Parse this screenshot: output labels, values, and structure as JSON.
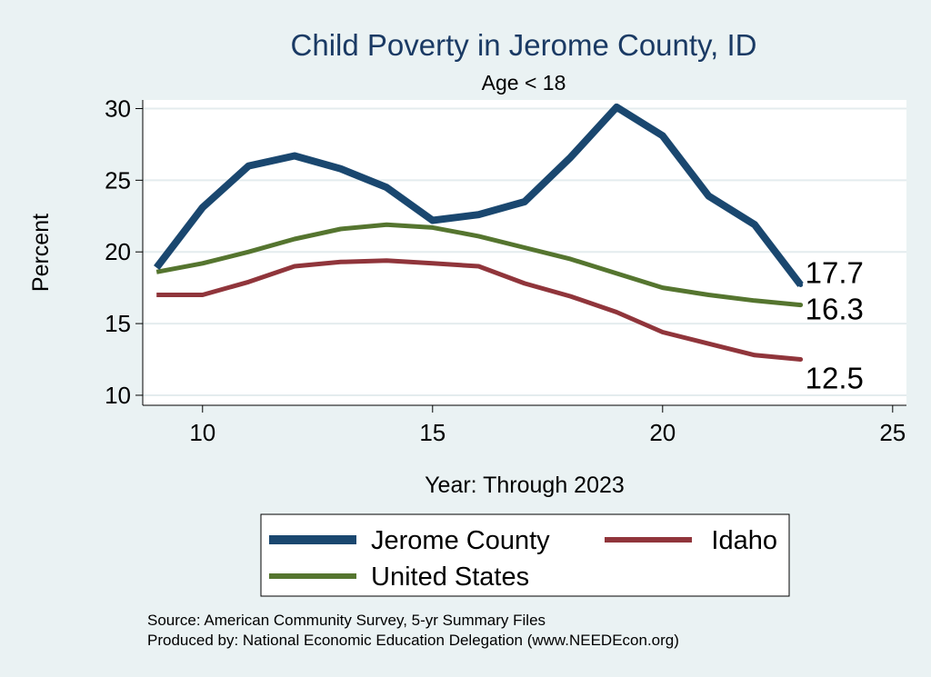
{
  "chart_data": {
    "type": "line",
    "title": "Child Poverty in Jerome County, ID",
    "subtitle": "Age < 18",
    "xlabel": "Year: Through 2023",
    "ylabel": "Percent",
    "xlim": [
      8.7,
      25.3
    ],
    "ylim": [
      9.3,
      30.6
    ],
    "xticks": [
      10,
      15,
      20,
      25
    ],
    "yticks": [
      10,
      15,
      20,
      25,
      30
    ],
    "x": [
      9,
      10,
      11,
      12,
      13,
      14,
      15,
      16,
      17,
      18,
      19,
      20,
      21,
      22,
      23
    ],
    "grid": true,
    "series": [
      {
        "name": "Jerome County",
        "color": "#1a476f",
        "values": [
          18.9,
          23.1,
          26.0,
          26.7,
          25.8,
          24.5,
          22.2,
          22.6,
          23.5,
          26.6,
          30.1,
          28.1,
          23.9,
          21.9,
          17.7
        ],
        "end_label": "17.7"
      },
      {
        "name": "United States",
        "color": "#55752f",
        "values": [
          18.6,
          19.2,
          20.0,
          20.9,
          21.6,
          21.9,
          21.7,
          21.1,
          20.3,
          19.5,
          18.5,
          17.5,
          17.0,
          16.6,
          16.3
        ],
        "end_label": "16.3"
      },
      {
        "name": "Idaho",
        "color": "#90353b",
        "values": [
          17.0,
          17.0,
          17.9,
          19.0,
          19.3,
          19.4,
          19.2,
          19.0,
          17.8,
          16.9,
          15.8,
          14.4,
          13.6,
          12.8,
          12.5
        ],
        "end_label": "12.5"
      }
    ],
    "legend": {
      "position": "bottom",
      "entries": [
        "Jerome County",
        "Idaho",
        "United States"
      ]
    },
    "notes": [
      "Source: American Community Survey, 5-yr Summary Files",
      "Produced by: National Economic Education Delegation (www.NEEDEcon.org)"
    ]
  }
}
